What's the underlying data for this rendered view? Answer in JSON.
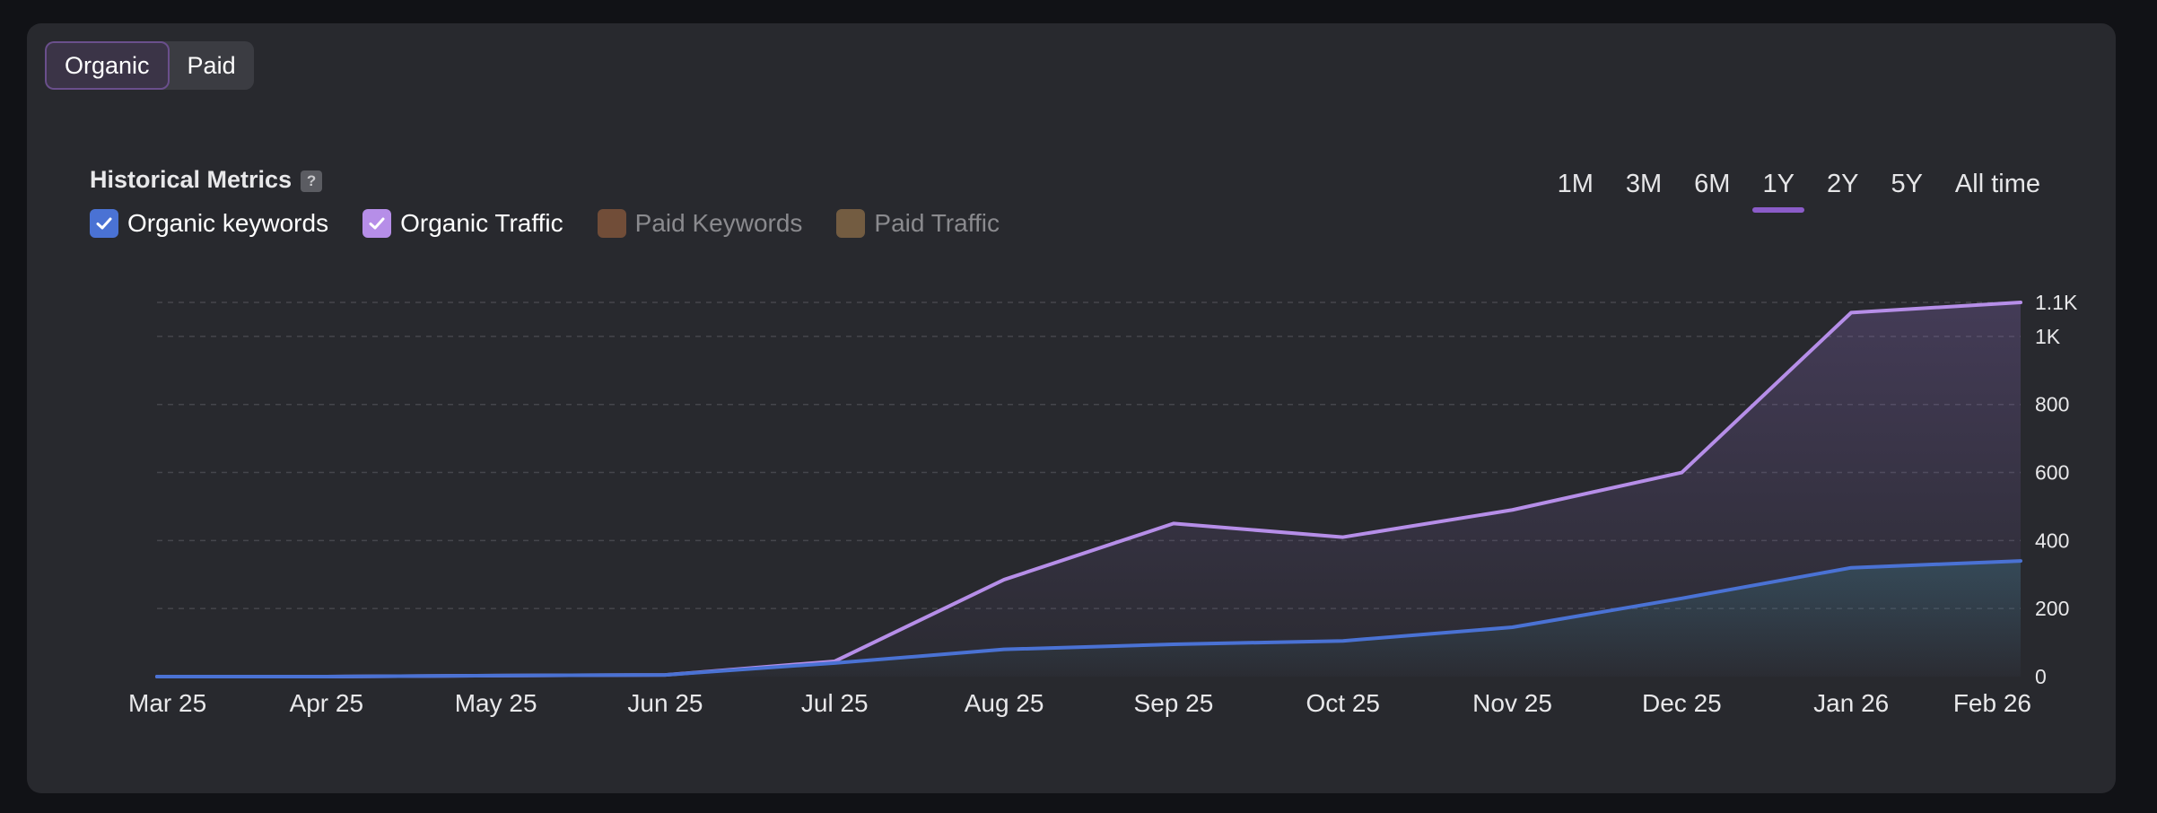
{
  "tabs": [
    {
      "label": "Organic",
      "active": true
    },
    {
      "label": "Paid",
      "active": false
    }
  ],
  "header": {
    "title": "Historical Metrics",
    "help_glyph": "?"
  },
  "time_ranges": [
    {
      "label": "1M",
      "active": false
    },
    {
      "label": "3M",
      "active": false
    },
    {
      "label": "6M",
      "active": false
    },
    {
      "label": "1Y",
      "active": true
    },
    {
      "label": "2Y",
      "active": false
    },
    {
      "label": "5Y",
      "active": false
    },
    {
      "label": "All time",
      "active": false
    }
  ],
  "legend": [
    {
      "label": "Organic keywords",
      "checked": true,
      "color": "#4a72d4"
    },
    {
      "label": "Organic Traffic",
      "checked": true,
      "color": "#b68ee8"
    },
    {
      "label": "Paid Keywords",
      "checked": false,
      "color": "#8a5a3c"
    },
    {
      "label": "Paid Traffic",
      "checked": false,
      "color": "#8c6e48"
    }
  ],
  "chart_data": {
    "type": "area",
    "title": "Historical Metrics",
    "categories": [
      "Mar 25",
      "Apr 25",
      "May 25",
      "Jun 25",
      "Jul 25",
      "Aug 25",
      "Sep 25",
      "Oct 25",
      "Nov 25",
      "Dec 25",
      "Jan 26",
      "Feb 26"
    ],
    "series": [
      {
        "name": "Organic keywords",
        "color": "#4a72d4",
        "values": [
          0,
          0,
          3,
          5,
          40,
          80,
          95,
          105,
          145,
          230,
          320,
          340
        ]
      },
      {
        "name": "Organic Traffic",
        "color": "#b68ee8",
        "values": [
          0,
          0,
          3,
          5,
          45,
          285,
          450,
          410,
          490,
          600,
          1070,
          1100
        ]
      }
    ],
    "y_ticks": [
      {
        "value": 0,
        "label": "0"
      },
      {
        "value": 200,
        "label": "200"
      },
      {
        "value": 400,
        "label": "400"
      },
      {
        "value": 600,
        "label": "600"
      },
      {
        "value": 800,
        "label": "800"
      },
      {
        "value": 1000,
        "label": "1K"
      },
      {
        "value": 1100,
        "label": "1.1K"
      }
    ],
    "ylim": [
      0,
      1100
    ],
    "grid": true,
    "axis_side": "right"
  }
}
